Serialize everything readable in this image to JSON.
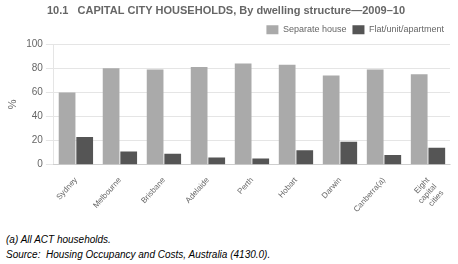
{
  "chart_data": {
    "type": "bar",
    "title": "10.1   CAPITAL CITY HOUSEHOLDS, By dwelling structure—2009–10",
    "ylabel": "%",
    "categories": [
      "Sydney",
      "Melbourne",
      "Brisbane",
      "Adelaide",
      "Perth",
      "Hobart",
      "Darwin",
      "Canberra(a)",
      "Eight\ncapital\ncities"
    ],
    "series": [
      {
        "name": "Separate house",
        "color": "#aaaaaa",
        "values": [
          60,
          80,
          79,
          81,
          84,
          83,
          74,
          79,
          75
        ]
      },
      {
        "name": "Flat/unit/apartment",
        "color": "#555555",
        "values": [
          23,
          11,
          9,
          6,
          5,
          12,
          19,
          8,
          14
        ]
      }
    ],
    "ylim": [
      0,
      100
    ],
    "yticks": [
      0,
      20,
      40,
      60,
      80,
      100
    ],
    "grid": true,
    "legend": "upper right",
    "annotations": [
      "(a) All ACT households.",
      "Source:  Housing Occupancy and Costs, Australia (4130.0)."
    ]
  }
}
